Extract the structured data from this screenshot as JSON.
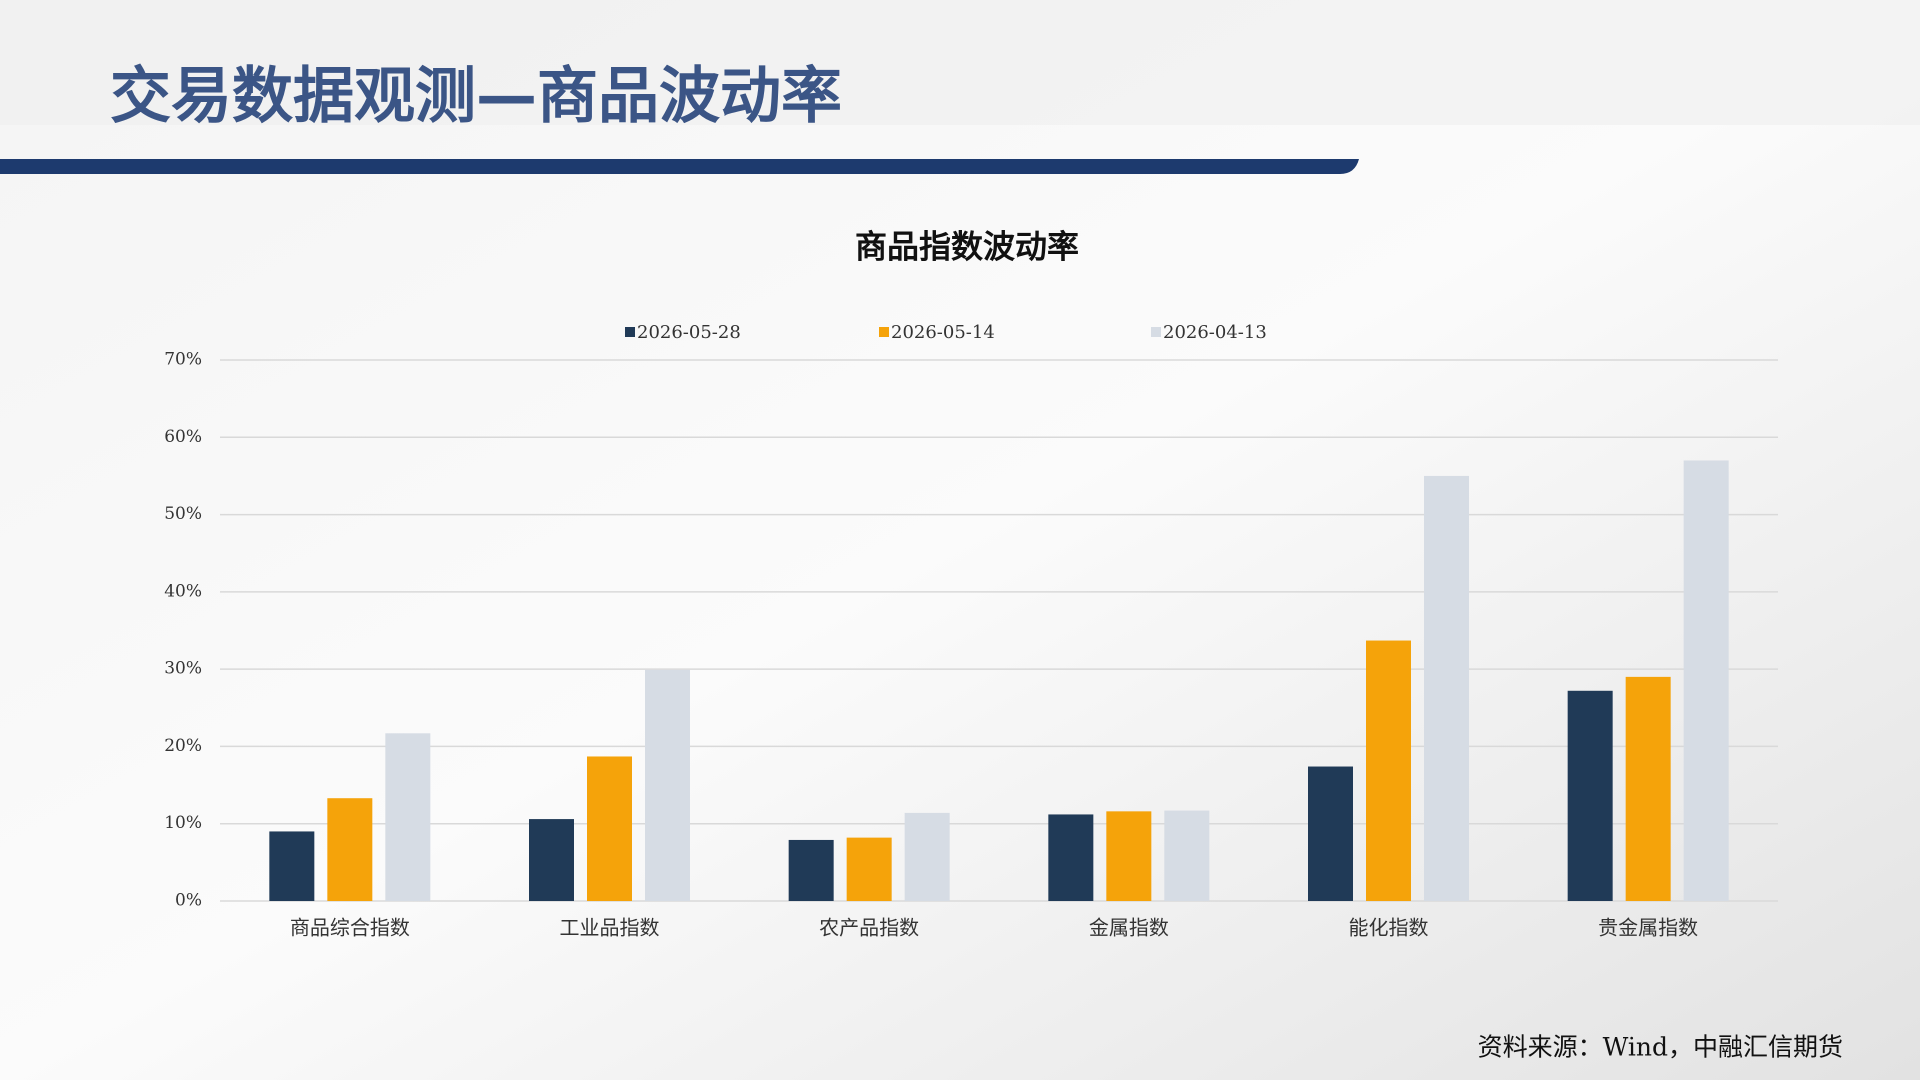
{
  "header": {
    "title": "交易数据观测—商品波动率"
  },
  "chart_data": {
    "type": "bar",
    "title": "商品指数波动率",
    "categories": [
      "商品综合指数",
      "工业品指数",
      "农产品指数",
      "金属指数",
      "能化指数",
      "贵金属指数"
    ],
    "series": [
      {
        "name": "2026-05-28",
        "color": "#203a57",
        "values": [
          9.0,
          10.6,
          7.9,
          11.2,
          17.4,
          27.2
        ]
      },
      {
        "name": "2026-05-14",
        "color": "#f5a30a",
        "values": [
          13.3,
          18.7,
          8.2,
          11.6,
          33.7,
          29.0
        ]
      },
      {
        "name": "2026-04-13",
        "color": "#d6dce4",
        "values": [
          21.7,
          29.9,
          11.4,
          11.7,
          55.0,
          57.0
        ]
      }
    ],
    "ylim": [
      0,
      70
    ],
    "yticks": [
      {
        "value": 0,
        "label": "0%"
      },
      {
        "value": 10,
        "label": "10%"
      },
      {
        "value": 20,
        "label": "20%"
      },
      {
        "value": 30,
        "label": "30%"
      },
      {
        "value": 40,
        "label": "40%"
      },
      {
        "value": 50,
        "label": "50%"
      },
      {
        "value": 60,
        "label": "60%"
      },
      {
        "value": 70,
        "label": "70%"
      }
    ],
    "grid": true
  },
  "source": "资料来源：Wind，中融汇信期货"
}
